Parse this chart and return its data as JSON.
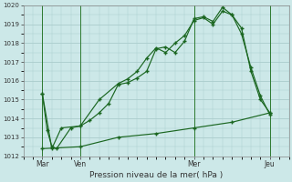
{
  "title": "Pression niveau de la mer( hPa )",
  "background_color": "#cce8e8",
  "grid_color": "#aacccc",
  "line_color": "#1a6620",
  "ylim": [
    1012,
    1020
  ],
  "xlim": [
    0,
    168
  ],
  "xtick_labels": [
    "Mar",
    "Ven",
    "Mer",
    "Jeu"
  ],
  "xtick_positions": [
    12,
    36,
    108,
    156
  ],
  "vline_positions": [
    12,
    36,
    108,
    156
  ],
  "series1": [
    [
      12,
      1015.3
    ],
    [
      15,
      1013.4
    ],
    [
      18,
      1012.5
    ],
    [
      21,
      1012.4
    ],
    [
      30,
      1013.5
    ],
    [
      36,
      1013.6
    ],
    [
      42,
      1013.9
    ],
    [
      48,
      1014.3
    ],
    [
      54,
      1014.8
    ],
    [
      60,
      1015.8
    ],
    [
      66,
      1015.9
    ],
    [
      72,
      1016.15
    ],
    [
      78,
      1016.5
    ],
    [
      84,
      1017.7
    ],
    [
      90,
      1017.8
    ],
    [
      96,
      1017.5
    ],
    [
      102,
      1018.1
    ],
    [
      108,
      1019.3
    ],
    [
      114,
      1019.4
    ],
    [
      120,
      1019.15
    ],
    [
      126,
      1019.9
    ],
    [
      132,
      1019.5
    ],
    [
      138,
      1018.8
    ],
    [
      144,
      1016.5
    ],
    [
      150,
      1015.0
    ],
    [
      156,
      1014.3
    ]
  ],
  "series2": [
    [
      12,
      1015.3
    ],
    [
      18,
      1012.4
    ],
    [
      24,
      1013.5
    ],
    [
      36,
      1013.6
    ],
    [
      48,
      1015.0
    ],
    [
      60,
      1015.85
    ],
    [
      66,
      1016.1
    ],
    [
      72,
      1016.5
    ],
    [
      78,
      1017.2
    ],
    [
      84,
      1017.75
    ],
    [
      90,
      1017.5
    ],
    [
      96,
      1018.0
    ],
    [
      102,
      1018.4
    ],
    [
      108,
      1019.2
    ],
    [
      114,
      1019.35
    ],
    [
      120,
      1019.0
    ],
    [
      126,
      1019.7
    ],
    [
      132,
      1019.5
    ],
    [
      138,
      1018.5
    ],
    [
      144,
      1016.7
    ],
    [
      150,
      1015.2
    ],
    [
      156,
      1014.2
    ]
  ],
  "series3": [
    [
      12,
      1012.4
    ],
    [
      36,
      1012.5
    ],
    [
      60,
      1013.0
    ],
    [
      84,
      1013.2
    ],
    [
      108,
      1013.5
    ],
    [
      132,
      1013.8
    ],
    [
      156,
      1014.3
    ]
  ]
}
